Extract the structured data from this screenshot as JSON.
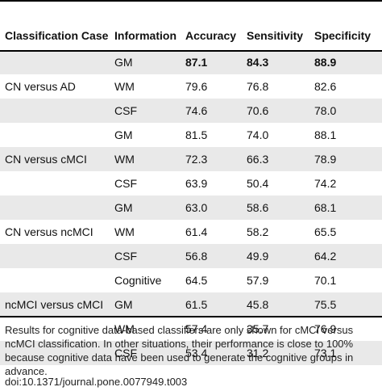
{
  "table": {
    "headers": [
      "Classification Case",
      "Information",
      "Accuracy",
      "Sensitivity",
      "Specificity"
    ],
    "rows": [
      {
        "case": "",
        "info": "GM",
        "accuracy": "87.1",
        "sensitivity": "84.3",
        "specificity": "88.9"
      },
      {
        "case": "CN versus AD",
        "info": "WM",
        "accuracy": "79.6",
        "sensitivity": "76.8",
        "specificity": "82.6"
      },
      {
        "case": "",
        "info": "CSF",
        "accuracy": "74.6",
        "sensitivity": "70.6",
        "specificity": "78.0"
      },
      {
        "case": "",
        "info": "GM",
        "accuracy": "81.5",
        "sensitivity": "74.0",
        "specificity": "88.1"
      },
      {
        "case": "CN versus cMCI",
        "info": "WM",
        "accuracy": "72.3",
        "sensitivity": "66.3",
        "specificity": "78.9"
      },
      {
        "case": "",
        "info": "CSF",
        "accuracy": "63.9",
        "sensitivity": "50.4",
        "specificity": "74.2"
      },
      {
        "case": "",
        "info": "GM",
        "accuracy": "63.0",
        "sensitivity": "58.6",
        "specificity": "68.1"
      },
      {
        "case": "CN versus ncMCI",
        "info": "WM",
        "accuracy": "61.4",
        "sensitivity": "58.2",
        "specificity": "65.5"
      },
      {
        "case": "",
        "info": "CSF",
        "accuracy": "56.8",
        "sensitivity": "49.9",
        "specificity": "64.2"
      },
      {
        "case": "",
        "info": "Cognitive",
        "accuracy": "64.5",
        "sensitivity": "57.9",
        "specificity": "70.1"
      },
      {
        "case": "ncMCI versus cMCI",
        "info": "GM",
        "accuracy": "61.5",
        "sensitivity": "45.8",
        "specificity": "75.5"
      },
      {
        "case": "",
        "info": "WM",
        "accuracy": "57.4",
        "sensitivity": "35.7",
        "specificity": "76.9"
      },
      {
        "case": "",
        "info": "CSF",
        "accuracy": "53.4",
        "sensitivity": "31.2",
        "specificity": "73.1"
      }
    ]
  },
  "footnote": "Results for cognitive data-based classifiers are only shown for cMCI versus ncMCI classification. In other situations, their performance is close to 100% because cognitive data have been used to generate the cognitive groups in advance.",
  "doi": "doi:10.1371/journal.pone.0077949.t003"
}
